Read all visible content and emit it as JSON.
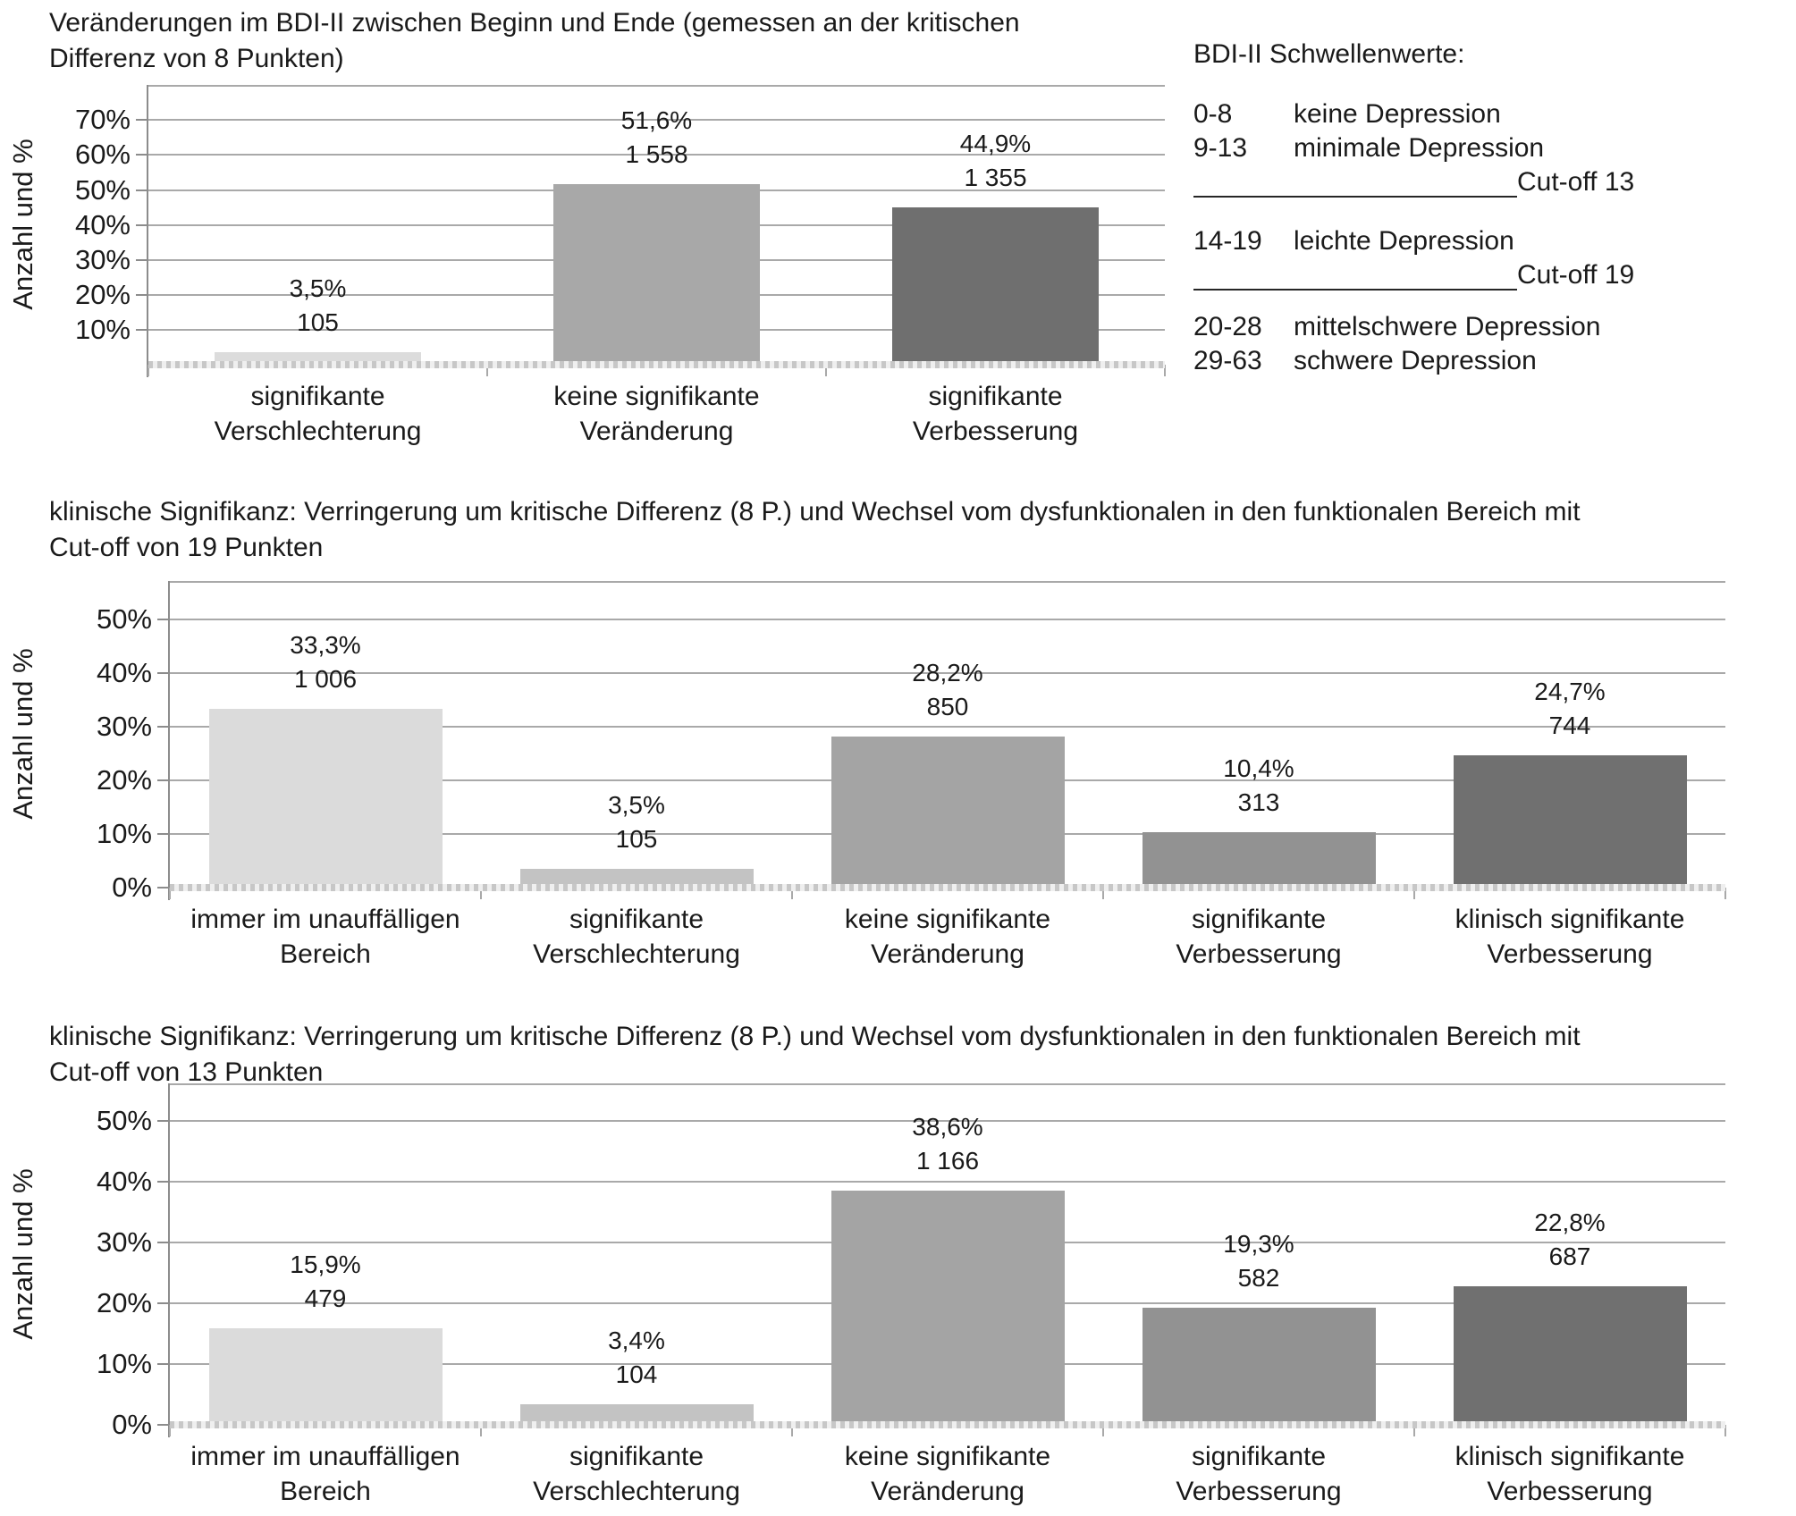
{
  "chart_data": [
    {
      "type": "bar",
      "title": "Veränderungen im BDI-II zwischen Beginn und Ende (gemessen an der kritischen Differenz von 8 Punkten)",
      "title_lines": [
        "Veränderungen im BDI-II zwischen Beginn und Ende (gemessen an der kritischen",
        "Differenz von 8 Punkten)"
      ],
      "ylabel": "Anzahl und %",
      "ylim": [
        0,
        80
      ],
      "grid": true,
      "legend_position": "none",
      "y_tick_values": [
        10,
        20,
        30,
        40,
        50,
        60,
        70
      ],
      "y_tick_labels": [
        "10%",
        "20%",
        "30%",
        "40%",
        "50%",
        "60%",
        "70%"
      ],
      "categories": [
        "signifikante Verschlechterung",
        "keine signifikante Veränderung",
        "signifikante Verbesserung"
      ],
      "categories_lines": [
        [
          "signifikante",
          "Verschlechterung"
        ],
        [
          "keine signifikante",
          "Veränderung"
        ],
        [
          "signifikante",
          "Verbesserung"
        ]
      ],
      "values_percent": [
        3.5,
        51.6,
        44.9
      ],
      "values_count": [
        105,
        1558,
        1355
      ],
      "percent_labels": [
        "3,5%",
        "51,6%",
        "44,9%"
      ],
      "count_labels": [
        "105",
        "1 558",
        "1 355"
      ],
      "bar_colors": [
        "#dcdcdc",
        "#a8a8a8",
        "#6f6f6f"
      ]
    },
    {
      "type": "bar",
      "title": "klinische Signifikanz: Verringerung um kritische Differenz (8 P.) und Wechsel vom dysfunktionalen in den funktionalen Bereich mit Cut-off von 19 Punkten",
      "title_lines": [
        "klinische Signifikanz: Verringerung um kritische Differenz (8 P.) und Wechsel vom dysfunktionalen in den funktionalen Bereich mit",
        "Cut-off von 19 Punkten"
      ],
      "ylabel": "Anzahl und %",
      "ylim": [
        0,
        57
      ],
      "grid": true,
      "legend_position": "none",
      "y_tick_values": [
        0,
        10,
        20,
        30,
        40,
        50
      ],
      "y_tick_labels": [
        "0%",
        "10%",
        "20%",
        "30%",
        "40%",
        "50%"
      ],
      "categories": [
        "immer im unauffälligen Bereich",
        "signifikante Verschlechterung",
        "keine signifikante Veränderung",
        "signifikante Verbesserung",
        "klinisch signifikante Verbesserung"
      ],
      "categories_lines": [
        [
          "immer im unauffälligen",
          "Bereich"
        ],
        [
          "signifikante",
          "Verschlechterung"
        ],
        [
          "keine signifikante",
          "Veränderung"
        ],
        [
          "signifikante",
          "Verbesserung"
        ],
        [
          "klinisch signifikante",
          "Verbesserung"
        ]
      ],
      "values_percent": [
        33.3,
        3.5,
        28.2,
        10.4,
        24.7
      ],
      "values_count": [
        1006,
        105,
        850,
        313,
        744
      ],
      "percent_labels": [
        "33,3%",
        "3,5%",
        "28,2%",
        "10,4%",
        "24,7%"
      ],
      "count_labels": [
        "1 006",
        "105",
        "850",
        "313",
        "744"
      ],
      "bar_colors": [
        "#dbdbdb",
        "#c3c3c3",
        "#a4a4a4",
        "#929292",
        "#707070"
      ]
    },
    {
      "type": "bar",
      "title": "klinische Signifikanz: Verringerung um kritische Differenz (8 P.) und Wechsel vom dysfunktionalen in den funktionalen Bereich mit Cut-off von 13 Punkten",
      "title_lines": [
        "klinische Signifikanz: Verringerung um kritische Differenz (8 P.) und Wechsel vom dysfunktionalen in den funktionalen Bereich mit",
        "Cut-off von 13 Punkten"
      ],
      "ylabel": "Anzahl und %",
      "ylim": [
        0,
        56
      ],
      "grid": true,
      "legend_position": "none",
      "y_tick_values": [
        0,
        10,
        20,
        30,
        40,
        50
      ],
      "y_tick_labels": [
        "0%",
        "10%",
        "20%",
        "30%",
        "40%",
        "50%"
      ],
      "categories": [
        "immer im unauffälligen Bereich",
        "signifikante Verschlechterung",
        "keine signifikante Veränderung",
        "signifikante Verbesserung",
        "klinisch signifikante Verbesserung"
      ],
      "categories_lines": [
        [
          "immer im unauffälligen",
          "Bereich"
        ],
        [
          "signifikante",
          "Verschlechterung"
        ],
        [
          "keine signifikante",
          "Veränderung"
        ],
        [
          "signifikante",
          "Verbesserung"
        ],
        [
          "klinisch signifikante",
          "Verbesserung"
        ]
      ],
      "values_percent": [
        15.9,
        3.4,
        38.6,
        19.3,
        22.8
      ],
      "values_count": [
        479,
        104,
        1166,
        582,
        687
      ],
      "percent_labels": [
        "15,9%",
        "3,4%",
        "38,6%",
        "19,3%",
        "22,8%"
      ],
      "count_labels": [
        "479",
        "104",
        "1 166",
        "582",
        "687"
      ],
      "bar_colors": [
        "#dbdbdb",
        "#c3c3c3",
        "#a4a4a4",
        "#929292",
        "#707070"
      ]
    }
  ],
  "threshold_legend": {
    "title": "BDI-II Schwellenwerte:",
    "rows": [
      {
        "range": "0-8",
        "label": "keine Depression"
      },
      {
        "range": "9-13",
        "label": "minimale Depression"
      },
      {
        "range": "14-19",
        "label": "leichte Depression"
      },
      {
        "range": "20-28",
        "label": "mittelschwere Depression"
      },
      {
        "range": "29-63",
        "label": "schwere Depression"
      }
    ],
    "cutoffs": [
      "Cut-off 13",
      "Cut-off 19"
    ]
  },
  "colors": {
    "gridline": "#a9a9a9",
    "axis": "#8c8c8c",
    "text": "#1a1a1a"
  }
}
